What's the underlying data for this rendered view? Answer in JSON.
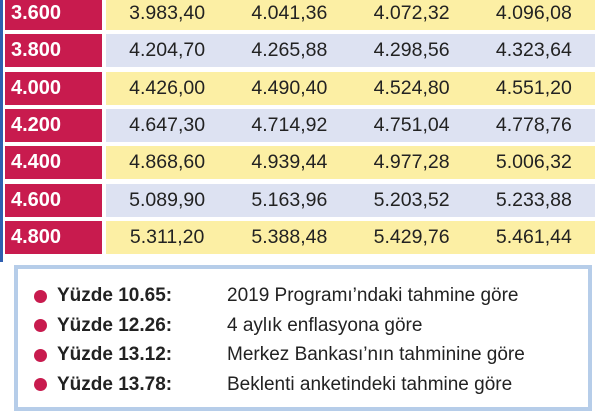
{
  "table": {
    "rows": [
      [
        "3.600",
        "3.983,40",
        "4.041,36",
        "4.072,32",
        "4.096,08"
      ],
      [
        "3.800",
        "4.204,70",
        "4.265,88",
        "4.298,56",
        "4.323,64"
      ],
      [
        "4.000",
        "4.426,00",
        "4.490,40",
        "4.524,80",
        "4.551,20"
      ],
      [
        "4.200",
        "4.647,30",
        "4.714,92",
        "4.751,04",
        "4.778,76"
      ],
      [
        "4.400",
        "4.868,60",
        "4.939,44",
        "4.977,28",
        "5.006,32"
      ],
      [
        "4.600",
        "5.089,90",
        "5.163,96",
        "5.203,52",
        "5.233,88"
      ],
      [
        "4.800",
        "5.311,20",
        "5.388,48",
        "5.429,76",
        "5.461,44"
      ]
    ]
  },
  "legend": {
    "items": [
      {
        "label": "Yüzde 10.65:",
        "text": "2019 Programı’ndaki tahmine göre"
      },
      {
        "label": "Yüzde 12.26:",
        "text": "4 aylık enflasyona göre"
      },
      {
        "label": "Yüzde 13.12:",
        "text": "Merkez Bankası’nın tahminine göre"
      },
      {
        "label": "Yüzde 13.78:",
        "text": "Beklenti anketindeki tahmine göre"
      }
    ]
  }
}
